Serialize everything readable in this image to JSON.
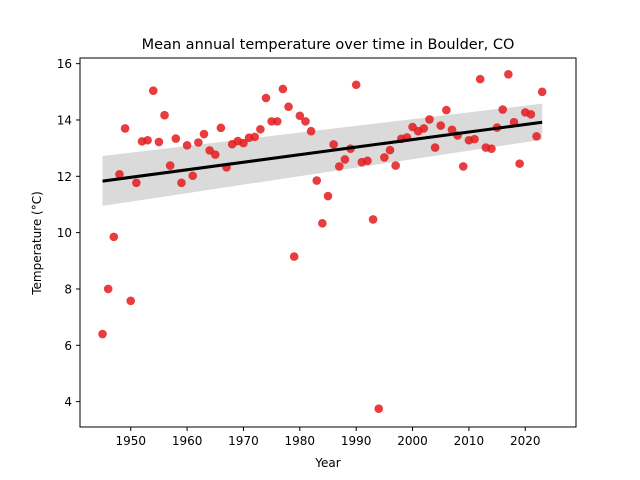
{
  "chart_data": {
    "type": "scatter",
    "title": "Mean annual temperature over time in Boulder, CO",
    "xlabel": "Year",
    "ylabel": "Temperature (°C)",
    "xlim": [
      1941,
      2029
    ],
    "ylim": [
      3.1,
      16.2
    ],
    "xticks": [
      1950,
      1960,
      1970,
      1980,
      1990,
      2000,
      2010,
      2020
    ],
    "yticks": [
      4,
      6,
      8,
      10,
      12,
      14,
      16
    ],
    "grid": false,
    "point_color": "#e41a1c",
    "regression": {
      "x": [
        1945,
        2023
      ],
      "y": [
        11.83,
        13.92
      ],
      "ci_lower": [
        10.95,
        13.3
      ],
      "ci_upper": [
        12.72,
        14.58
      ],
      "line_color": "#000000",
      "band_color": "#d3d3d3"
    },
    "points": [
      [
        1945,
        6.4
      ],
      [
        1946,
        8.0
      ],
      [
        1947,
        9.85
      ],
      [
        1948,
        12.07
      ],
      [
        1949,
        13.7
      ],
      [
        1950,
        7.58
      ],
      [
        1951,
        11.77
      ],
      [
        1952,
        13.24
      ],
      [
        1953,
        13.28
      ],
      [
        1954,
        15.04
      ],
      [
        1955,
        13.22
      ],
      [
        1956,
        14.17
      ],
      [
        1957,
        12.38
      ],
      [
        1958,
        13.34
      ],
      [
        1959,
        11.77
      ],
      [
        1960,
        13.1
      ],
      [
        1961,
        12.02
      ],
      [
        1962,
        13.2
      ],
      [
        1963,
        13.5
      ],
      [
        1964,
        12.92
      ],
      [
        1965,
        12.77
      ],
      [
        1966,
        13.72
      ],
      [
        1967,
        12.32
      ],
      [
        1968,
        13.14
      ],
      [
        1969,
        13.25
      ],
      [
        1970,
        13.18
      ],
      [
        1971,
        13.37
      ],
      [
        1972,
        13.4
      ],
      [
        1973,
        13.67
      ],
      [
        1974,
        14.78
      ],
      [
        1975,
        13.95
      ],
      [
        1976,
        13.95
      ],
      [
        1977,
        15.1
      ],
      [
        1978,
        14.47
      ],
      [
        1979,
        9.15
      ],
      [
        1980,
        14.15
      ],
      [
        1981,
        13.95
      ],
      [
        1982,
        13.6
      ],
      [
        1983,
        11.85
      ],
      [
        1984,
        10.33
      ],
      [
        1985,
        11.3
      ],
      [
        1986,
        13.13
      ],
      [
        1987,
        12.35
      ],
      [
        1988,
        12.6
      ],
      [
        1989,
        12.98
      ],
      [
        1990,
        15.25
      ],
      [
        1991,
        12.5
      ],
      [
        1992,
        12.55
      ],
      [
        1993,
        10.47
      ],
      [
        1994,
        3.75
      ],
      [
        1995,
        12.67
      ],
      [
        1996,
        12.93
      ],
      [
        1997,
        12.38
      ],
      [
        1998,
        13.33
      ],
      [
        1999,
        13.38
      ],
      [
        2000,
        13.75
      ],
      [
        2001,
        13.6
      ],
      [
        2002,
        13.7
      ],
      [
        2003,
        14.02
      ],
      [
        2004,
        13.02
      ],
      [
        2005,
        13.8
      ],
      [
        2006,
        14.35
      ],
      [
        2007,
        13.65
      ],
      [
        2008,
        13.45
      ],
      [
        2009,
        12.35
      ],
      [
        2010,
        13.28
      ],
      [
        2011,
        13.32
      ],
      [
        2012,
        15.45
      ],
      [
        2013,
        13.02
      ],
      [
        2014,
        12.98
      ],
      [
        2015,
        13.73
      ],
      [
        2016,
        14.37
      ],
      [
        2017,
        15.62
      ],
      [
        2018,
        13.92
      ],
      [
        2019,
        12.45
      ],
      [
        2020,
        14.27
      ],
      [
        2021,
        14.2
      ],
      [
        2022,
        13.42
      ],
      [
        2023,
        15.0
      ]
    ]
  }
}
